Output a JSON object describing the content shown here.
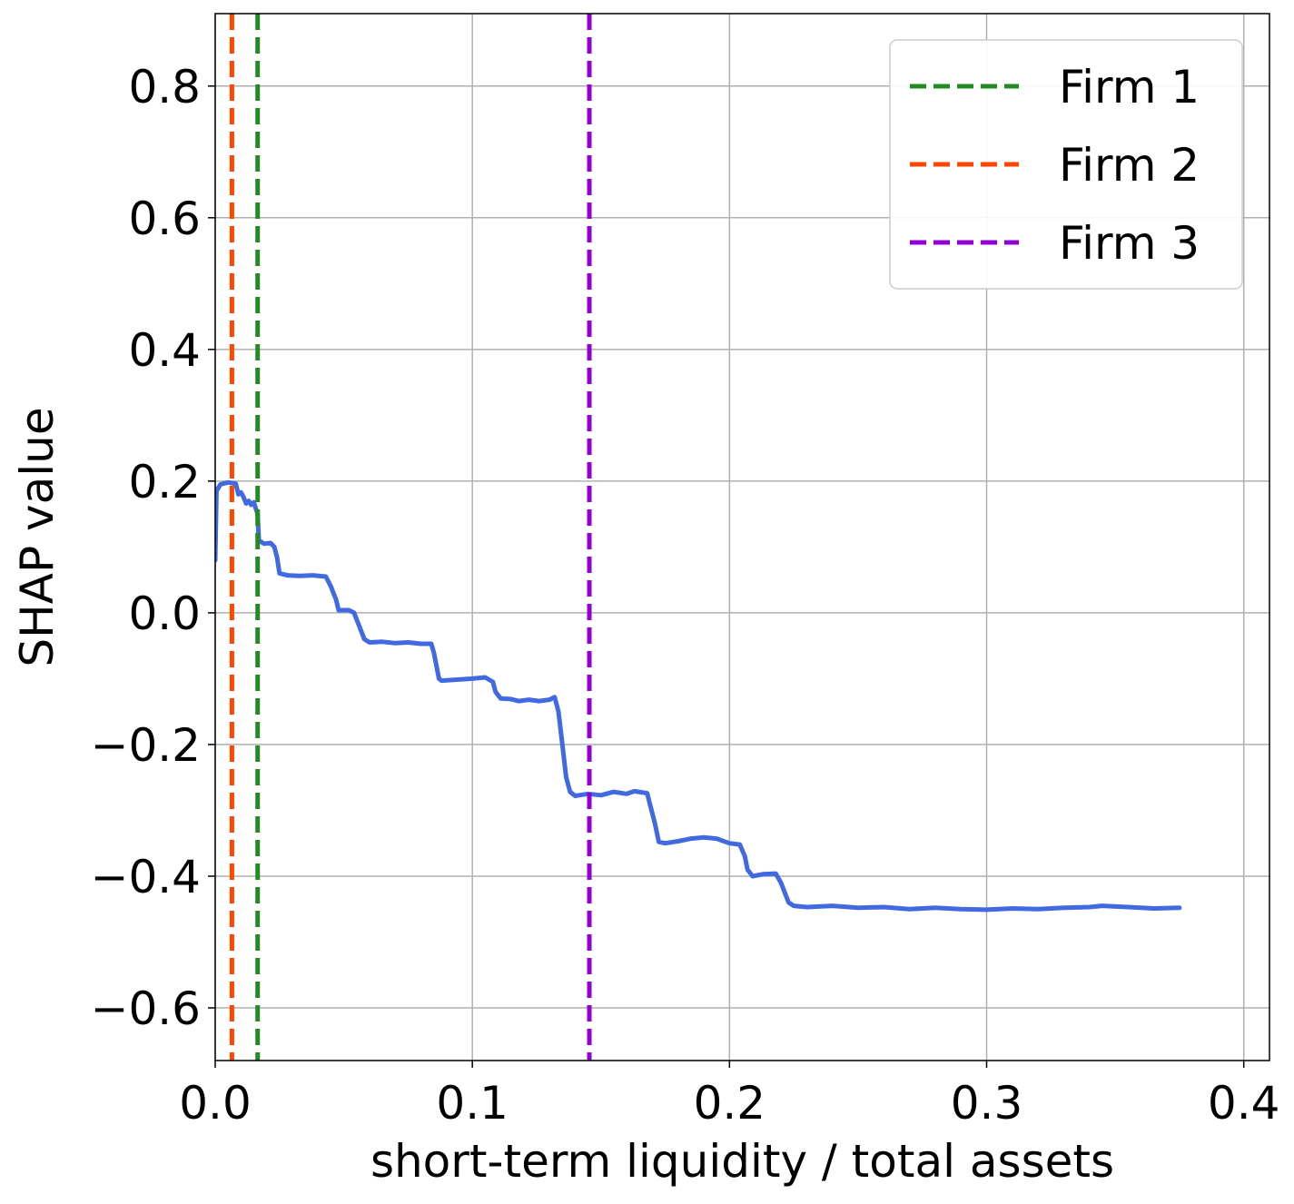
{
  "chart_data": {
    "type": "line",
    "title": "",
    "xlabel": "short-term liquidity / total assets",
    "ylabel": "SHAP value",
    "xlim": [
      0.0,
      0.41
    ],
    "ylim": [
      -0.68,
      0.91
    ],
    "x_ticks": [
      0.0,
      0.1,
      0.2,
      0.3,
      0.4
    ],
    "x_tick_labels": [
      "0.0",
      "0.1",
      "0.2",
      "0.3",
      "0.4"
    ],
    "y_ticks": [
      0.8,
      0.6,
      0.4,
      0.2,
      0.0,
      -0.2,
      -0.4,
      -0.6
    ],
    "y_tick_labels": [
      "0.8",
      "0.6",
      "0.4",
      "0.2",
      "0.0",
      "−0.2",
      "−0.4",
      "−0.6"
    ],
    "grid": true,
    "legend_position": "top-right",
    "series": [
      {
        "color": "#4169E1",
        "points": [
          [
            0.0,
            0.08
          ],
          [
            0.0005,
            0.185
          ],
          [
            0.002,
            0.195
          ],
          [
            0.005,
            0.198
          ],
          [
            0.008,
            0.196
          ],
          [
            0.009,
            0.18
          ],
          [
            0.01,
            0.183
          ],
          [
            0.011,
            0.176
          ],
          [
            0.012,
            0.166
          ],
          [
            0.013,
            0.17
          ],
          [
            0.014,
            0.164
          ],
          [
            0.015,
            0.168
          ],
          [
            0.0165,
            0.15
          ],
          [
            0.017,
            0.11
          ],
          [
            0.019,
            0.105
          ],
          [
            0.0215,
            0.106
          ],
          [
            0.023,
            0.1
          ],
          [
            0.024,
            0.085
          ],
          [
            0.025,
            0.06
          ],
          [
            0.028,
            0.057
          ],
          [
            0.033,
            0.056
          ],
          [
            0.038,
            0.057
          ],
          [
            0.043,
            0.055
          ],
          [
            0.045,
            0.04
          ],
          [
            0.047,
            0.02
          ],
          [
            0.048,
            0.004
          ],
          [
            0.052,
            0.004
          ],
          [
            0.054,
            0.0
          ],
          [
            0.056,
            -0.02
          ],
          [
            0.058,
            -0.04
          ],
          [
            0.06,
            -0.045
          ],
          [
            0.065,
            -0.044
          ],
          [
            0.07,
            -0.046
          ],
          [
            0.075,
            -0.045
          ],
          [
            0.08,
            -0.047
          ],
          [
            0.084,
            -0.047
          ],
          [
            0.085,
            -0.06
          ],
          [
            0.087,
            -0.1
          ],
          [
            0.088,
            -0.103
          ],
          [
            0.092,
            -0.102
          ],
          [
            0.096,
            -0.101
          ],
          [
            0.1,
            -0.1
          ],
          [
            0.105,
            -0.098
          ],
          [
            0.108,
            -0.105
          ],
          [
            0.109,
            -0.12
          ],
          [
            0.111,
            -0.13
          ],
          [
            0.115,
            -0.131
          ],
          [
            0.118,
            -0.134
          ],
          [
            0.122,
            -0.132
          ],
          [
            0.126,
            -0.134
          ],
          [
            0.13,
            -0.132
          ],
          [
            0.132,
            -0.128
          ],
          [
            0.1335,
            -0.15
          ],
          [
            0.135,
            -0.2
          ],
          [
            0.1365,
            -0.25
          ],
          [
            0.138,
            -0.272
          ],
          [
            0.14,
            -0.278
          ],
          [
            0.145,
            -0.275
          ],
          [
            0.15,
            -0.277
          ],
          [
            0.155,
            -0.272
          ],
          [
            0.16,
            -0.275
          ],
          [
            0.163,
            -0.271
          ],
          [
            0.168,
            -0.274
          ],
          [
            0.169,
            -0.29
          ],
          [
            0.171,
            -0.32
          ],
          [
            0.1725,
            -0.348
          ],
          [
            0.175,
            -0.35
          ],
          [
            0.18,
            -0.347
          ],
          [
            0.185,
            -0.343
          ],
          [
            0.19,
            -0.341
          ],
          [
            0.195,
            -0.343
          ],
          [
            0.2,
            -0.35
          ],
          [
            0.204,
            -0.352
          ],
          [
            0.206,
            -0.37
          ],
          [
            0.207,
            -0.39
          ],
          [
            0.209,
            -0.4
          ],
          [
            0.213,
            -0.397
          ],
          [
            0.218,
            -0.396
          ],
          [
            0.22,
            -0.41
          ],
          [
            0.223,
            -0.44
          ],
          [
            0.225,
            -0.445
          ],
          [
            0.23,
            -0.447
          ],
          [
            0.24,
            -0.445
          ],
          [
            0.25,
            -0.448
          ],
          [
            0.26,
            -0.447
          ],
          [
            0.27,
            -0.45
          ],
          [
            0.28,
            -0.448
          ],
          [
            0.29,
            -0.45
          ],
          [
            0.3,
            -0.451
          ],
          [
            0.31,
            -0.449
          ],
          [
            0.32,
            -0.45
          ],
          [
            0.33,
            -0.448
          ],
          [
            0.34,
            -0.447
          ],
          [
            0.345,
            -0.445
          ],
          [
            0.355,
            -0.447
          ],
          [
            0.365,
            -0.449
          ],
          [
            0.375,
            -0.448
          ]
        ]
      }
    ],
    "vlines": [
      {
        "name": "Firm 1",
        "x": 0.0165,
        "color": "#228B22"
      },
      {
        "name": "Firm 2",
        "x": 0.0065,
        "color": "#FF4500"
      },
      {
        "name": "Firm 3",
        "x": 0.1455,
        "color": "#9400D3"
      }
    ]
  }
}
